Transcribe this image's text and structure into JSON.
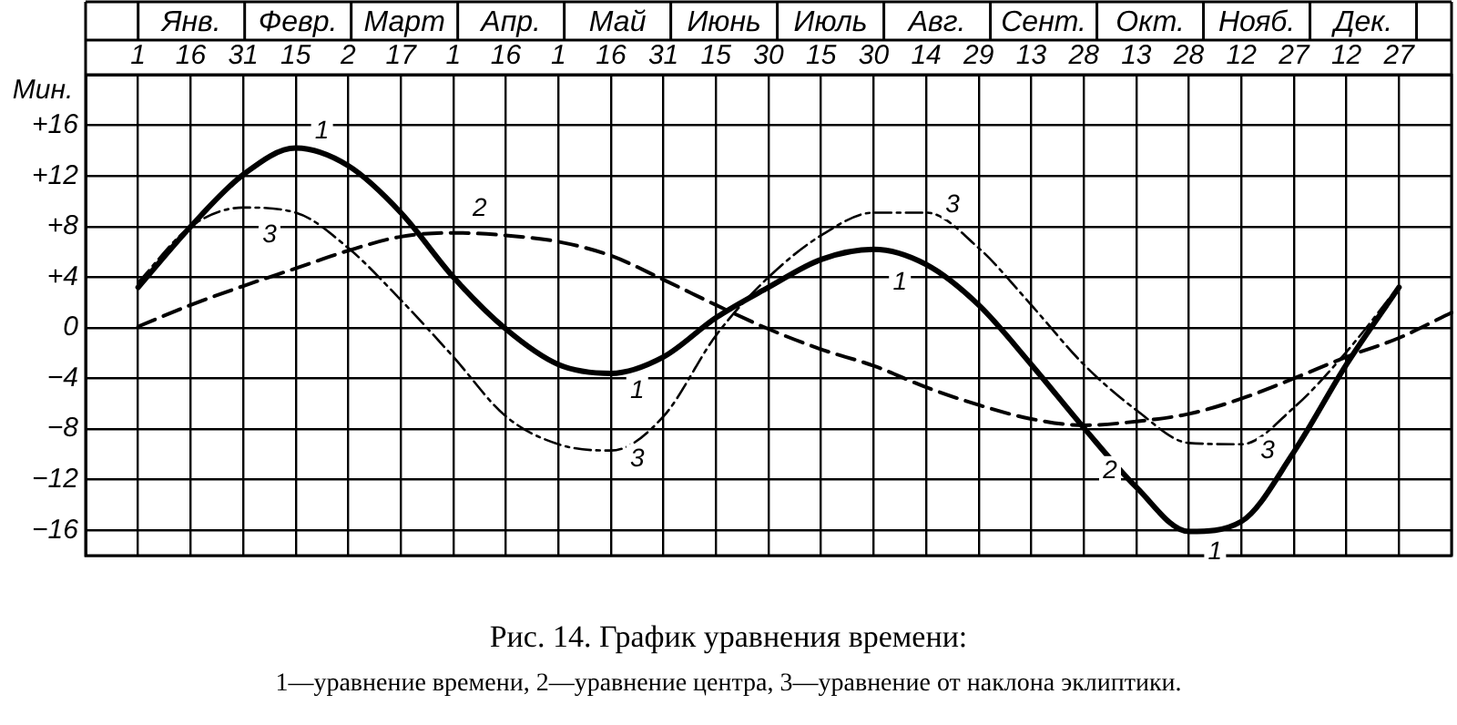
{
  "chart_data": {
    "type": "line",
    "title": "Рис. 14. График уравнения времени:",
    "subtitle": "1—уравнение времени, 2—уравнение центра, 3—уравнение от наклона эклиптики.",
    "ylabel": "Мин.",
    "categories": [
      null,
      "1",
      "16",
      "31",
      "15",
      "2",
      "17",
      "1",
      "16",
      "1",
      "16",
      "31",
      "15",
      "30",
      "15",
      "30",
      "14",
      "29",
      "13",
      "28",
      "13",
      "28",
      "12",
      "27",
      "12",
      "27",
      null
    ],
    "ylim": [
      -18,
      20
    ],
    "yticks": [
      {
        "value": -18,
        "label": null
      },
      {
        "value": -16,
        "label": "−16"
      },
      {
        "value": -12,
        "label": "−12"
      },
      {
        "value": -8,
        "label": "−8"
      },
      {
        "value": -4,
        "label": "−4"
      },
      0,
      {
        "value": 4,
        "label": "+4"
      },
      {
        "value": 8,
        "label": "+8"
      },
      {
        "value": 12,
        "label": "+12"
      },
      {
        "value": 16,
        "label": "+16"
      },
      {
        "value": 20,
        "label": null
      }
    ],
    "grid": true,
    "legend": false,
    "marker": "none",
    "series": [
      {
        "name": "1",
        "color": "#000000",
        "line_style": "solid",
        "values": [
          null,
          3.2,
          8.0,
          12.1,
          14.2,
          12.8,
          9.1,
          4.0,
          -0.1,
          -2.9,
          -3.6,
          -2.3,
          0.8,
          3.2,
          5.4,
          6.2,
          5.0,
          1.8,
          -2.9,
          -7.9,
          -12.6,
          -16.1,
          -15.3,
          -9.8,
          -2.9,
          3.2,
          null
        ]
      },
      {
        "name": "2",
        "color": "#000000",
        "line_style": "dashed",
        "values": [
          null,
          0.1,
          1.8,
          3.3,
          4.7,
          6.1,
          7.2,
          7.5,
          7.3,
          6.8,
          5.7,
          3.8,
          1.8,
          -0.1,
          -1.7,
          -3.0,
          -4.7,
          -6.1,
          -7.2,
          -7.7,
          -7.4,
          -6.8,
          -5.6,
          -4.0,
          -2.3,
          -0.8,
          1.2
        ]
      },
      {
        "name": "3",
        "color": "#000000",
        "line_style": "dashdot",
        "values": [
          null,
          3.6,
          8.0,
          9.5,
          9.1,
          6.3,
          2.2,
          -2.3,
          -7.0,
          -9.2,
          -9.7,
          -7.0,
          -0.6,
          4.0,
          7.3,
          9.1,
          9.1,
          6.3,
          1.8,
          -2.9,
          -6.5,
          -9.1,
          -9.2,
          -6.3,
          -1.9,
          3.3,
          null
        ]
      }
    ],
    "annotations": [
      "Янв.",
      "Февр.",
      "Март",
      "Апр.",
      "Май",
      "Июнь",
      "Июль",
      "Авг.",
      "Сент.",
      "Окт.",
      "Нояб.",
      "Дек."
    ]
  }
}
